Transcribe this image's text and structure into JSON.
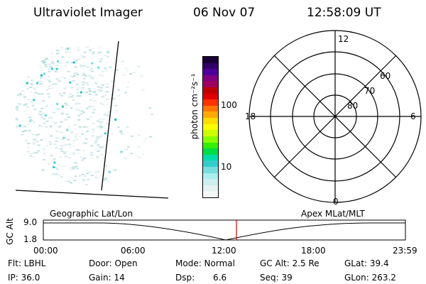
{
  "header": {
    "instrument": "Ultraviolet Imager",
    "date": "06 Nov 07",
    "time": "12:58:09 UT"
  },
  "colorbar": {
    "label": "photon cm⁻²s⁻¹",
    "ticks": [
      "100",
      "10"
    ],
    "colors": [
      "#1a0033",
      "#330066",
      "#4d0099",
      "#800080",
      "#a00060",
      "#c00000",
      "#e00000",
      "#ff3300",
      "#ff7700",
      "#ffaa00",
      "#ffdd00",
      "#ffff00",
      "#ccff00",
      "#88ff00",
      "#33ee00",
      "#00dd44",
      "#00ddaa",
      "#33cccc",
      "#77dddd",
      "#aaeeee",
      "#cceeee",
      "#e6f2f2",
      "#f4f8f8"
    ]
  },
  "polar_plot": {
    "labels_clock": [
      "12",
      "18",
      "6",
      "0"
    ],
    "labels_lat": [
      "60",
      "70",
      "80"
    ]
  },
  "orbit": {
    "left_label": "Geographic Lat/Lon",
    "right_label": "Apex MLat/MLT",
    "y_axis_label": "GC Alt",
    "y_ticks": [
      "9.0",
      "1.8"
    ],
    "x_ticks": [
      "00:00",
      "06:00",
      "12:00",
      "18:00",
      "23:59"
    ],
    "marker_color": "#cc0000"
  },
  "info": {
    "flt": "Flt: LBHL",
    "ip": "IP: 36.0",
    "door": "Door: Open",
    "gain": "Gain: 14",
    "mode": "Mode: Normal",
    "dsp_label": "Dsp:",
    "dsp_value": "6.6",
    "gc_alt": "GC Alt: 2.5 Re",
    "seq": "Seq: 39",
    "glat": "GLat:  39.4",
    "glon": "GLon: 263.2"
  }
}
